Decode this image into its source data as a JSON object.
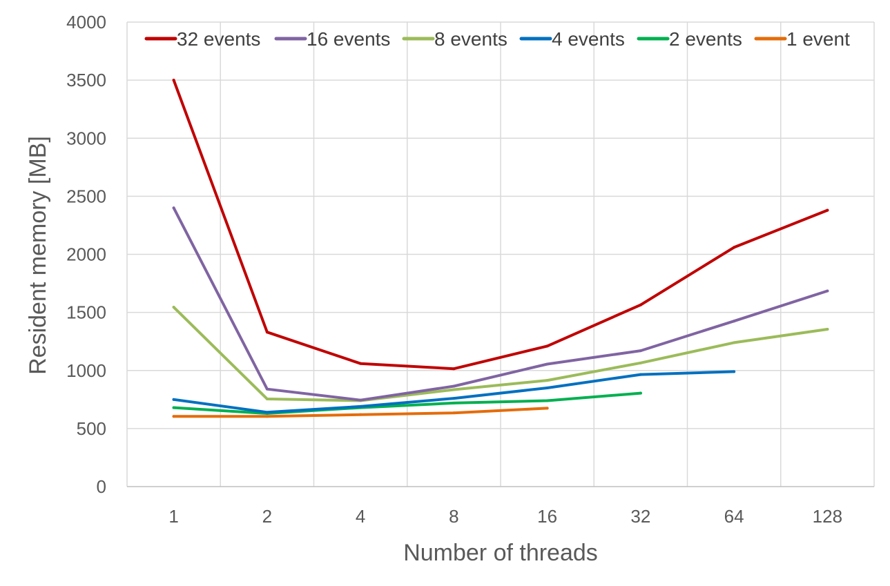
{
  "chart_data": {
    "type": "line",
    "title": "",
    "xlabel": "Number of threads",
    "ylabel": "Resident memory [MB]",
    "categories": [
      "1",
      "2",
      "4",
      "8",
      "16",
      "32",
      "64",
      "128"
    ],
    "ylim": [
      0,
      4000
    ],
    "yticks": [
      0,
      500,
      1000,
      1500,
      2000,
      2500,
      3000,
      3500,
      4000
    ],
    "grid": true,
    "legend_position": "top",
    "series": [
      {
        "name": "32 events",
        "color": "#C00000",
        "values": [
          3500,
          1330,
          1060,
          1015,
          1210,
          1565,
          2060,
          2380
        ]
      },
      {
        "name": "16 events",
        "color": "#8064A2",
        "values": [
          2400,
          840,
          745,
          865,
          1055,
          1170,
          1425,
          1685
        ]
      },
      {
        "name": "8 events",
        "color": "#9BBB59",
        "values": [
          1545,
          755,
          740,
          835,
          915,
          1065,
          1240,
          1355
        ]
      },
      {
        "name": "4 events",
        "color": "#0070C0",
        "values": [
          750,
          640,
          690,
          760,
          850,
          965,
          990,
          null
        ]
      },
      {
        "name": "2 events",
        "color": "#00B050",
        "values": [
          680,
          630,
          680,
          720,
          740,
          805,
          null,
          null
        ]
      },
      {
        "name": "1 event",
        "color": "#E46C0A",
        "values": [
          605,
          605,
          620,
          635,
          675,
          null,
          null,
          null
        ]
      }
    ]
  }
}
